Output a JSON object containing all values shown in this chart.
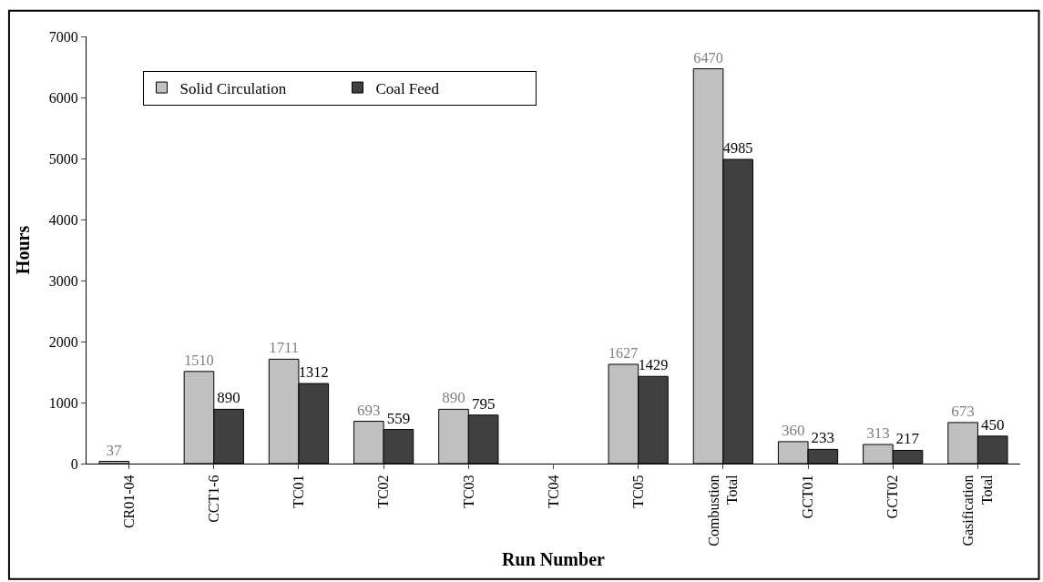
{
  "chart_data": {
    "type": "bar",
    "xlabel": "Run Number",
    "ylabel": "Hours",
    "categories": [
      "CR01-04",
      "CCT1-6",
      "TC01",
      "TC02",
      "TC03",
      "TC04",
      "TC05",
      "Combustion Total",
      "GCT01",
      "GCT02",
      "Gasification Total"
    ],
    "series": [
      {
        "name": "Solid Circulation",
        "color": "#c0c0c0",
        "values": [
          37,
          1510,
          1711,
          693,
          890,
          null,
          1627,
          6470,
          360,
          313,
          673
        ]
      },
      {
        "name": "Coal Feed",
        "color": "#404040",
        "values": [
          null,
          890,
          1312,
          559,
          795,
          null,
          1429,
          4985,
          233,
          217,
          450
        ]
      }
    ],
    "ylim": [
      0,
      7000
    ],
    "yticks": [
      0,
      1000,
      2000,
      3000,
      4000,
      5000,
      6000,
      7000
    ],
    "legend": "top left",
    "data_labels": true
  }
}
